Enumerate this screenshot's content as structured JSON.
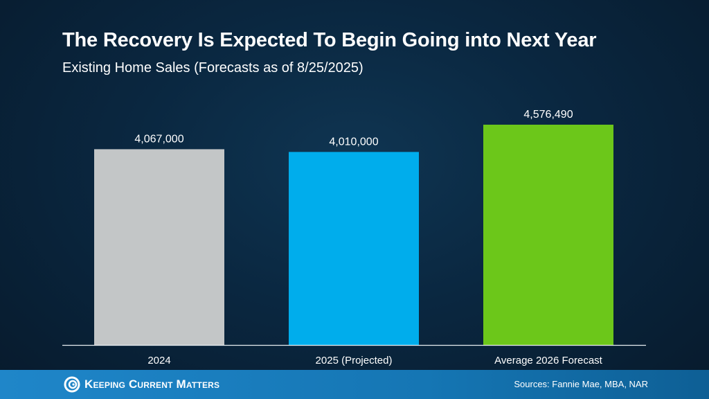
{
  "chart_data": {
    "type": "bar",
    "title": "The Recovery Is Expected To Begin Going into Next Year",
    "subtitle": "Existing Home Sales (Forecasts as of 8/25/2025)",
    "categories": [
      "2024",
      "2025 (Projected)",
      "Average 2026 Forecast"
    ],
    "values": [
      4067000,
      4010000,
      4576490
    ],
    "data_labels": [
      "4,067,000",
      "4,010,000",
      "4,576,490"
    ],
    "colors": [
      "#c3c6c7",
      "#00adec",
      "#6cc71a"
    ],
    "ylim": [
      0,
      4576490
    ],
    "grid": false,
    "xlabel": "",
    "ylabel": ""
  },
  "footer": {
    "brand": "Keeping Current Matters",
    "sources": "Sources: Fannie Mae, MBA, NAR"
  }
}
